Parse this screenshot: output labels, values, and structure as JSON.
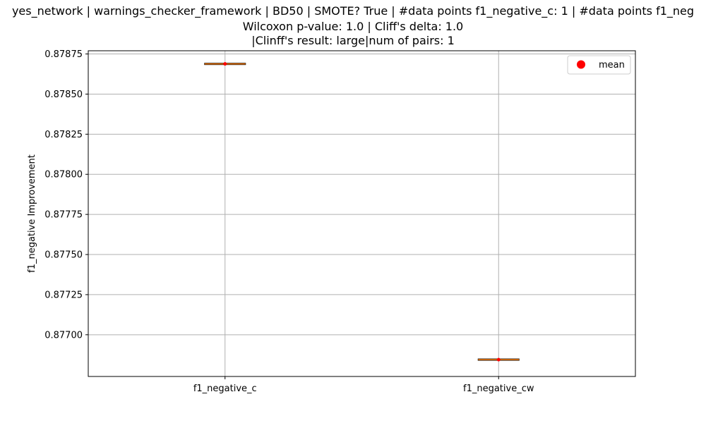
{
  "chart_data": {
    "type": "box",
    "title_lines": [
      "yes_network | warnings_checker_framework | BD50 | SMOTE? True | #data points f1_negative_c: 1 | #data points f1_neg",
      "Wilcoxon p-value: 1.0 | Cliff's delta: 1.0",
      "|Clinff's result: large|num of pairs: 1"
    ],
    "ylabel": "f1_negative Improvement",
    "xlabel": "",
    "categories": [
      "f1_negative_c",
      "f1_negative_cw"
    ],
    "values": [
      0.878688,
      0.876845
    ],
    "means": [
      0.878688,
      0.876845
    ],
    "ylim": [
      0.87674,
      0.87877
    ],
    "yticks": [
      0.877,
      0.87725,
      0.8775,
      0.87775,
      0.878,
      0.87825,
      0.8785,
      0.87875
    ],
    "ytick_labels": [
      "0.87700",
      "0.87725",
      "0.87750",
      "0.87775",
      "0.87800",
      "0.87825",
      "0.87850",
      "0.87875"
    ],
    "legend": {
      "label": "mean",
      "position": "top-right"
    },
    "grid": true,
    "colors": {
      "median": "#ff7f0e",
      "mean": "#ff0000",
      "grid": "#b0b0b0"
    }
  }
}
